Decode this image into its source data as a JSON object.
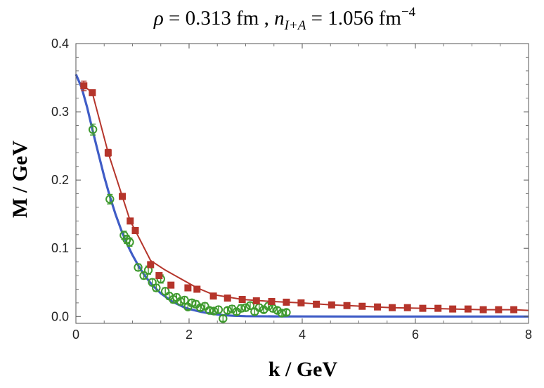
{
  "chart_data": {
    "type": "scatter",
    "title": {
      "rho_symbol": "ρ",
      "rho_text": " = 0.313 fm ,  ",
      "n_symbol": "n",
      "n_subscript": "I+A",
      "n_text": " = 1.056 fm",
      "n_exponent": "−4"
    },
    "xlabel": "k / GeV",
    "ylabel": "M / GeV",
    "xlim": [
      0,
      8
    ],
    "ylim": [
      -0.01,
      0.4
    ],
    "xticks": [
      0,
      2,
      4,
      6,
      8
    ],
    "xtick_labels": [
      "0",
      "2",
      "4",
      "6",
      "8"
    ],
    "yticks": [
      0.0,
      0.1,
      0.2,
      0.3,
      0.4
    ],
    "ytick_labels": [
      "0.0",
      "0.1",
      "0.2",
      "0.3",
      "0.4"
    ],
    "colors": {
      "red": "#b5352b",
      "green": "#3f9a2e",
      "blue": "#3f5cc6"
    },
    "series": [
      {
        "name": "red-squares",
        "marker": "square",
        "x": [
          0.14,
          0.29,
          0.57,
          0.82,
          0.96,
          1.05,
          1.32,
          1.47,
          1.68,
          1.98,
          2.14,
          2.43,
          2.68,
          2.94,
          3.19,
          3.46,
          3.72,
          3.98,
          4.25,
          4.52,
          4.79,
          5.06,
          5.33,
          5.59,
          5.86,
          6.13,
          6.4,
          6.66,
          6.93,
          7.2,
          7.47,
          7.74
        ],
        "y": [
          0.338,
          0.328,
          0.24,
          0.176,
          0.14,
          0.126,
          0.076,
          0.06,
          0.046,
          0.042,
          0.04,
          0.03,
          0.027,
          0.025,
          0.023,
          0.022,
          0.021,
          0.02,
          0.018,
          0.017,
          0.016,
          0.015,
          0.014,
          0.013,
          0.013,
          0.012,
          0.012,
          0.011,
          0.011,
          0.01,
          0.01,
          0.01
        ],
        "err": [
          0.007,
          0.004,
          0.005,
          0.004,
          0.004,
          0.004,
          0.003,
          0.003,
          0.003,
          0.003,
          0.003,
          0.002,
          0.002,
          0.002,
          0.002,
          0.002,
          0.002,
          0.002,
          0.002,
          0.002,
          0.002,
          0.002,
          0.002,
          0.002,
          0.002,
          0.002,
          0.002,
          0.002,
          0.002,
          0.002,
          0.002,
          0.002
        ],
        "line_x": [
          0.14,
          0.29,
          0.57,
          0.82,
          0.96,
          1.05,
          1.32,
          1.58,
          2.14,
          2.43,
          2.94,
          3.46,
          3.98,
          4.52,
          5.06,
          5.59,
          6.13,
          6.66,
          7.2,
          7.74,
          8.0
        ],
        "line_y": [
          0.338,
          0.328,
          0.24,
          0.176,
          0.14,
          0.126,
          0.082,
          0.068,
          0.042,
          0.032,
          0.025,
          0.022,
          0.02,
          0.017,
          0.015,
          0.013,
          0.012,
          0.011,
          0.01,
          0.01,
          0.009
        ]
      },
      {
        "name": "green-circles",
        "marker": "open-circle",
        "x": [
          0.3,
          0.6,
          0.85,
          0.9,
          0.95,
          1.1,
          1.2,
          1.28,
          1.35,
          1.42,
          1.5,
          1.58,
          1.65,
          1.72,
          1.78,
          1.85,
          1.92,
          1.98,
          2.05,
          2.12,
          2.2,
          2.28,
          2.36,
          2.44,
          2.52,
          2.6,
          2.68,
          2.76,
          2.84,
          2.92,
          3.0,
          3.08,
          3.16,
          3.24,
          3.32,
          3.4,
          3.48,
          3.56,
          3.64,
          3.72
        ],
        "y": [
          0.274,
          0.172,
          0.119,
          0.113,
          0.109,
          0.072,
          0.06,
          0.068,
          0.05,
          0.042,
          0.055,
          0.037,
          0.03,
          0.025,
          0.028,
          0.022,
          0.024,
          0.014,
          0.02,
          0.018,
          0.013,
          0.015,
          0.009,
          0.008,
          0.01,
          -0.003,
          0.009,
          0.011,
          0.007,
          0.012,
          0.013,
          0.016,
          0.007,
          0.013,
          0.01,
          0.015,
          0.012,
          0.009,
          0.005,
          0.006
        ],
        "err": [
          0.008,
          0.007,
          0.006,
          0.006,
          0.006,
          0.005,
          0.005,
          0.006,
          0.005,
          0.005,
          0.006,
          0.005,
          0.005,
          0.005,
          0.005,
          0.005,
          0.005,
          0.004,
          0.005,
          0.005,
          0.004,
          0.005,
          0.004,
          0.004,
          0.005,
          0.004,
          0.004,
          0.005,
          0.004,
          0.005,
          0.005,
          0.005,
          0.004,
          0.005,
          0.004,
          0.005,
          0.005,
          0.004,
          0.004,
          0.004
        ]
      },
      {
        "name": "blue-curve",
        "marker": "line",
        "x": [
          0.0,
          0.1,
          0.2,
          0.3,
          0.4,
          0.5,
          0.6,
          0.7,
          0.8,
          0.9,
          1.0,
          1.1,
          1.2,
          1.3,
          1.4,
          1.5,
          1.6,
          1.7,
          1.8,
          1.9,
          2.0,
          2.2,
          2.4,
          2.6,
          2.8,
          3.0,
          3.5,
          4.0,
          5.0,
          6.0,
          7.0,
          8.0
        ],
        "y": [
          0.355,
          0.336,
          0.306,
          0.271,
          0.238,
          0.205,
          0.176,
          0.15,
          0.127,
          0.107,
          0.09,
          0.075,
          0.062,
          0.051,
          0.042,
          0.034,
          0.028,
          0.022,
          0.018,
          0.014,
          0.011,
          0.007,
          0.004,
          0.002,
          0.001,
          0.0005,
          0.0002,
          0.0001,
          0.0,
          0.0,
          0.0,
          0.0
        ]
      }
    ]
  }
}
